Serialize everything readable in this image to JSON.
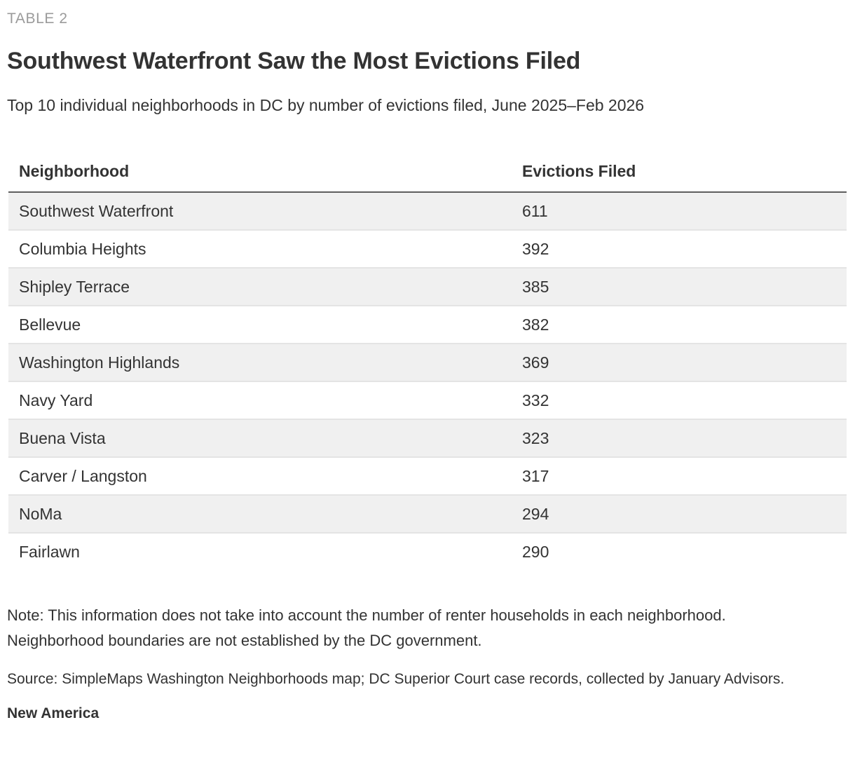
{
  "kicker": "TABLE 2",
  "title": "Southwest Waterfront Saw the Most Evictions Filed",
  "subtitle": "Top 10 individual neighborhoods in DC by number of evictions filed, June 2025–Feb 2026",
  "table": {
    "columns": [
      "Neighborhood",
      "Evictions Filed"
    ],
    "rows": [
      {
        "neighborhood": "Southwest Waterfront",
        "evictions": "611"
      },
      {
        "neighborhood": "Columbia Heights",
        "evictions": "392"
      },
      {
        "neighborhood": "Shipley Terrace",
        "evictions": "385"
      },
      {
        "neighborhood": "Bellevue",
        "evictions": "382"
      },
      {
        "neighborhood": "Washington Highlands",
        "evictions": "369"
      },
      {
        "neighborhood": "Navy Yard",
        "evictions": "332"
      },
      {
        "neighborhood": "Buena Vista",
        "evictions": "323"
      },
      {
        "neighborhood": "Carver / Langston",
        "evictions": "317"
      },
      {
        "neighborhood": "NoMa",
        "evictions": "294"
      },
      {
        "neighborhood": "Fairlawn",
        "evictions": "290"
      }
    ]
  },
  "note": "Note: This information does not take into account the number of renter households in each neighborhood. Neighborhood boundaries are not established by the DC government.",
  "source": "Source: SimpleMaps Washington Neighborhoods map; DC Superior Court case records, collected by January Advisors.",
  "attribution": "New America",
  "colors": {
    "text": "#333333",
    "kicker_text": "#9b9b9b",
    "row_stripe": "#f0f0f0",
    "row_separator": "#e4e4e4",
    "header_border": "#5e5e5e",
    "background": "#ffffff"
  },
  "chart_data": {
    "type": "table",
    "title": "Southwest Waterfront Saw the Most Evictions Filed",
    "subtitle": "Top 10 individual neighborhoods in DC by number of evictions filed, June 2025–Feb 2026",
    "columns": [
      "Neighborhood",
      "Evictions Filed"
    ],
    "categories": [
      "Southwest Waterfront",
      "Columbia Heights",
      "Shipley Terrace",
      "Bellevue",
      "Washington Highlands",
      "Navy Yard",
      "Buena Vista",
      "Carver / Langston",
      "NoMa",
      "Fairlawn"
    ],
    "values": [
      611,
      392,
      385,
      382,
      369,
      332,
      323,
      317,
      294,
      290
    ]
  }
}
